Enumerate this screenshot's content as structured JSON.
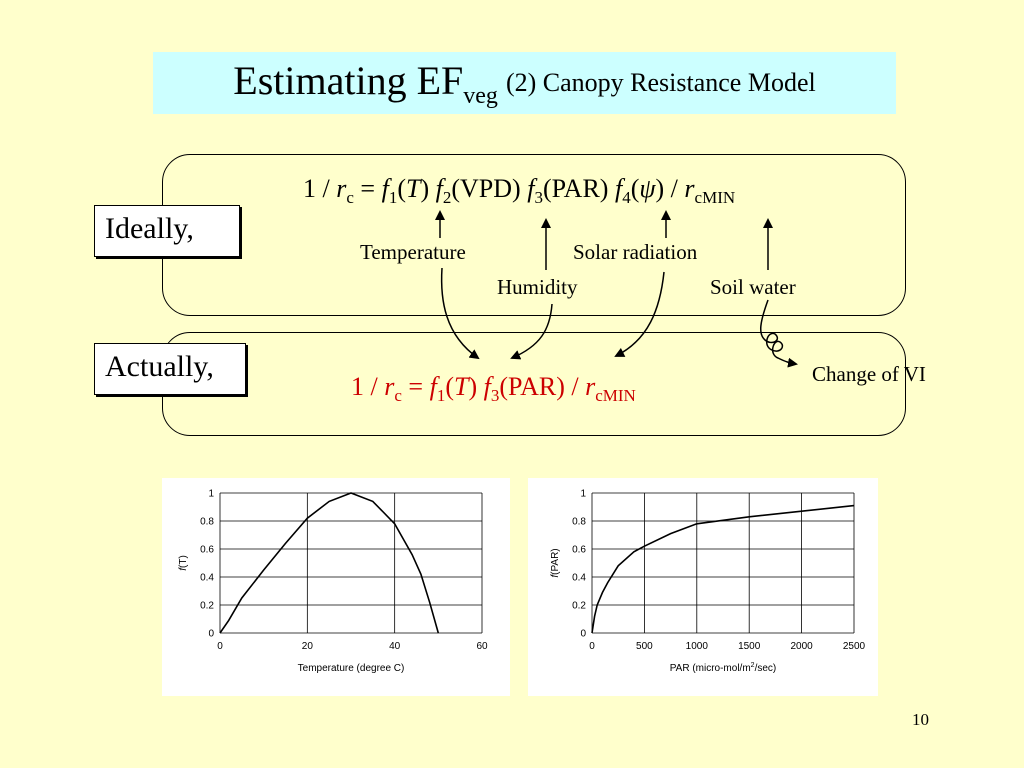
{
  "title": {
    "main": "Estimating EF",
    "main_sub": "veg",
    "subtitle": "(2) Canopy Resistance Model"
  },
  "ideally": {
    "label": "Ideally,",
    "eq": {
      "p1": "1 / ",
      "r": "r",
      "rsub": "c",
      "p2": " = ",
      "f1": "f",
      "f1s": "1",
      "t1": "(",
      "T": "T",
      "t2": ") ",
      "f2": "f",
      "f2s": "2",
      "vpd": "(VPD) ",
      "f3": "f",
      "f3s": "3",
      "par": "(PAR) ",
      "f4": "f",
      "f4s": "4",
      "psi1": "(",
      "psi": "ψ",
      "psi2": ") / ",
      "r2": "r",
      "r2s": "cMIN"
    },
    "annotations": {
      "temperature": "Temperature",
      "solar": "Solar radiation",
      "humidity": "Humidity",
      "soil": "Soil water"
    }
  },
  "actually": {
    "label": "Actually,",
    "eq": {
      "p1": "1 / ",
      "r": "r",
      "rsub": "c",
      "p2": " = ",
      "f1": "f",
      "f1s": "1",
      "t1": "(",
      "T": "T",
      "t2": ")  ",
      "f3": "f",
      "f3s": "3",
      "par": "(PAR) / ",
      "r2": "r",
      "r2s": "cMIN"
    },
    "change": "Change of VI"
  },
  "page_number": "10",
  "chart_data": [
    {
      "type": "line",
      "xlabel": "Temperature (degree C)",
      "ylabel_f": "f",
      "ylabel_rest": "(T)",
      "xlim": [
        0,
        60
      ],
      "ylim": [
        0,
        1
      ],
      "xticks": [
        0,
        20,
        40,
        60
      ],
      "yticks": [
        0,
        0.2,
        0.4,
        0.6,
        0.8,
        1
      ],
      "grid": true,
      "x": [
        0,
        2,
        5,
        10,
        15,
        20,
        25,
        30,
        35,
        40,
        44,
        46,
        48,
        50
      ],
      "y": [
        0,
        0.09,
        0.25,
        0.45,
        0.64,
        0.82,
        0.94,
        1.0,
        0.94,
        0.78,
        0.56,
        0.42,
        0.22,
        0
      ]
    },
    {
      "type": "line",
      "xlabel": "PAR (micro-mol/m",
      "xlabel_sup": "2",
      "xlabel_end": "/sec)",
      "ylabel_f": "f",
      "ylabel_rest": "(PAR)",
      "xlim": [
        0,
        2500
      ],
      "ylim": [
        0,
        1
      ],
      "xticks": [
        0,
        500,
        1000,
        1500,
        2000,
        2500
      ],
      "yticks": [
        0,
        0.2,
        0.4,
        0.6,
        0.8,
        1
      ],
      "grid": true,
      "x": [
        0,
        25,
        50,
        100,
        150,
        250,
        400,
        500,
        750,
        1000,
        1500,
        2000,
        2500
      ],
      "y": [
        0,
        0.12,
        0.2,
        0.29,
        0.36,
        0.48,
        0.58,
        0.62,
        0.71,
        0.78,
        0.83,
        0.87,
        0.91
      ]
    }
  ]
}
